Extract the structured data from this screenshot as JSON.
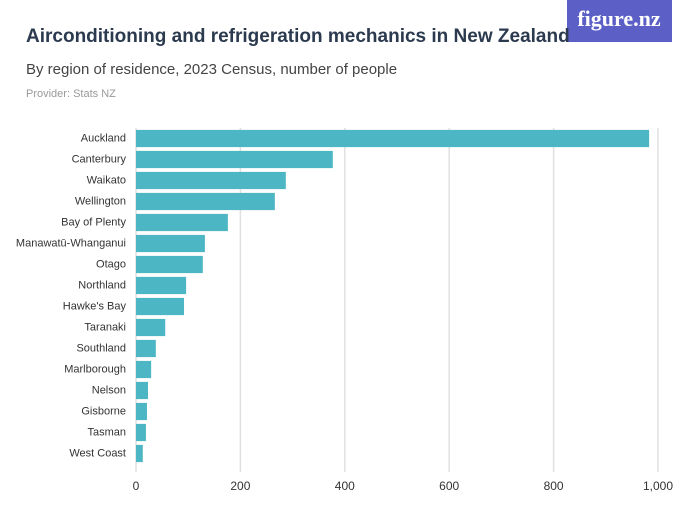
{
  "chart_data": {
    "type": "barh",
    "title": "Airconditioning and refrigeration mechanics in New Zealand",
    "subtitle": "By region of residence, 2023 Census, number of people",
    "provider": "Provider: Stats NZ",
    "logo": "figure.nz",
    "categories": [
      "Auckland",
      "Canterbury",
      "Waikato",
      "Wellington",
      "Bay of Plenty",
      "Manawatū-Whanganui",
      "Otago",
      "Northland",
      "Hawke's Bay",
      "Taranaki",
      "Southland",
      "Marlborough",
      "Nelson",
      "Gisborne",
      "Tasman",
      "West Coast"
    ],
    "values": [
      983,
      377,
      287,
      266,
      176,
      132,
      128,
      96,
      92,
      56,
      38,
      29,
      23,
      21,
      19,
      13
    ],
    "color": "#4db6c4",
    "xlim": [
      0,
      1000
    ],
    "xticks": [
      0,
      200,
      400,
      600,
      800,
      {
        "value": 1000,
        "label": "1,000"
      }
    ],
    "grid": true
  }
}
